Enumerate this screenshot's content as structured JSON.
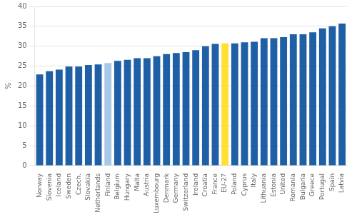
{
  "chart_data": {
    "type": "bar",
    "ylabel": "%",
    "categories": [
      "Norway",
      "Slovenia",
      "Iceland",
      "Sweden",
      "Czech.",
      "Slovakia",
      "Netherlands",
      "Finland",
      "Belgium",
      "Hungary",
      "Malta",
      "Austria",
      "Luxembourg",
      "Denmark",
      "Germany",
      "Switzerland",
      "Ireland",
      "Croatia",
      "France",
      "EU-27",
      "Poland",
      "Cyprus",
      "Italy",
      "Lithuania",
      "Estonia",
      "United",
      "Romania",
      "Bulgaria",
      "Greece",
      "Portugal",
      "Spain",
      "Latvia"
    ],
    "values": [
      22.9,
      23.7,
      24.1,
      24.9,
      24.9,
      25.3,
      25.4,
      25.8,
      26.3,
      26.6,
      27.0,
      27.0,
      27.5,
      28.0,
      28.3,
      28.5,
      29.0,
      30.0,
      30.6,
      30.7,
      30.7,
      31.0,
      31.1,
      32.0,
      32.0,
      32.3,
      33.0,
      33.0,
      33.5,
      34.5,
      35.0,
      35.7
    ],
    "colors": [
      "#1F5FA6",
      "#1F5FA6",
      "#1F5FA6",
      "#1F5FA6",
      "#1F5FA6",
      "#1F5FA6",
      "#1F5FA6",
      "#A8C8E8",
      "#1F5FA6",
      "#1F5FA6",
      "#1F5FA6",
      "#1F5FA6",
      "#1F5FA6",
      "#1F5FA6",
      "#1F5FA6",
      "#1F5FA6",
      "#1F5FA6",
      "#1F5FA6",
      "#1F5FA6",
      "#FFE033",
      "#1F5FA6",
      "#1F5FA6",
      "#1F5FA6",
      "#1F5FA6",
      "#1F5FA6",
      "#1F5FA6",
      "#1F5FA6",
      "#1F5FA6",
      "#1F5FA6",
      "#1F5FA6",
      "#1F5FA6",
      "#1F5FA6"
    ],
    "ylim": [
      0,
      40
    ],
    "yticks": [
      0,
      5,
      10,
      15,
      20,
      25,
      30,
      35,
      40
    ],
    "grid": true
  }
}
